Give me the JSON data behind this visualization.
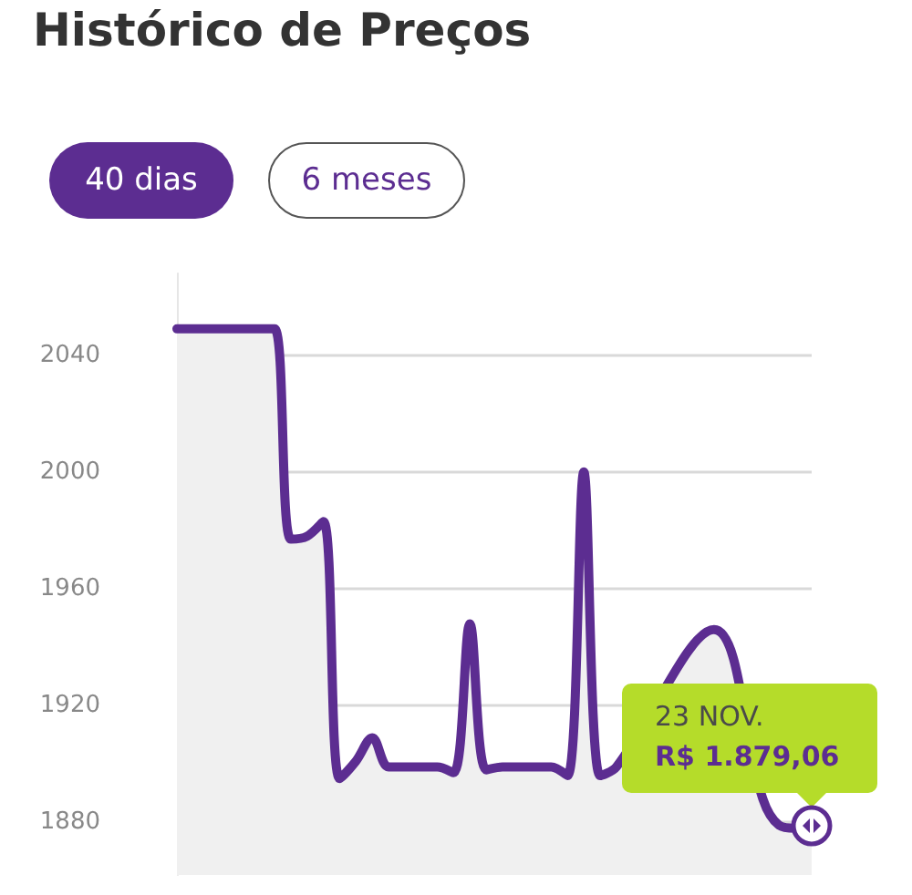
{
  "chart_data": {
    "type": "area",
    "title": "Histórico de Preços",
    "categories": [
      null,
      null,
      null,
      null,
      null,
      null,
      null,
      null,
      null,
      null,
      null,
      null,
      null,
      null,
      null,
      null,
      null,
      null,
      null,
      null,
      null,
      null,
      null,
      null,
      null,
      null,
      null,
      null,
      null,
      null,
      null,
      null,
      null,
      null,
      null,
      null,
      null,
      null,
      null,
      null
    ],
    "series": [
      {
        "color": "#5c2d91",
        "values": [
          2049,
          2049,
          2049,
          2049,
          2049,
          2049,
          2049,
          1977,
          1978,
          1983,
          1895,
          1901,
          1909,
          1899,
          1899,
          1899,
          1899,
          1897,
          1948,
          1898,
          1899,
          1899,
          1899,
          1899,
          1896,
          2000,
          1896,
          1899,
          null,
          null,
          null,
          null,
          null,
          1946,
          null,
          null,
          1888,
          1879,
          1878,
          1879
        ]
      }
    ],
    "ylim": [
      1862,
      2068
    ],
    "yticks": [
      1880,
      1920,
      1960,
      2000,
      2040
    ],
    "grid": "y",
    "tick_labels": "y",
    "annotations": [
      "40 dias",
      "6 meses",
      "23 NOV.",
      "R$ 1.879,06"
    ]
  }
}
